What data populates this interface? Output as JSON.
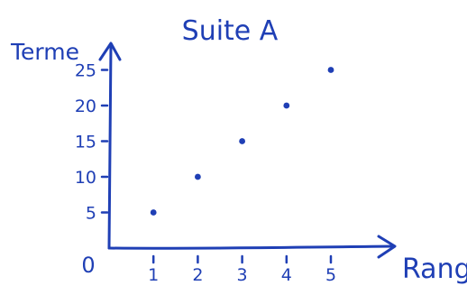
{
  "chart_data": {
    "type": "scatter",
    "title": "Suite A",
    "xlabel": "Rang",
    "ylabel": "Terme",
    "x": [
      1,
      2,
      3,
      4,
      5
    ],
    "y": [
      5,
      10,
      15,
      20,
      25
    ],
    "xlim": [
      0,
      5.6
    ],
    "ylim": [
      0,
      28
    ],
    "x_ticks": [
      1,
      2,
      3,
      4,
      5
    ],
    "y_ticks": [
      5,
      10,
      15,
      20,
      25
    ],
    "origin_label": "0",
    "grid": false,
    "style": "handwritten",
    "color": "#1f3fb5"
  }
}
